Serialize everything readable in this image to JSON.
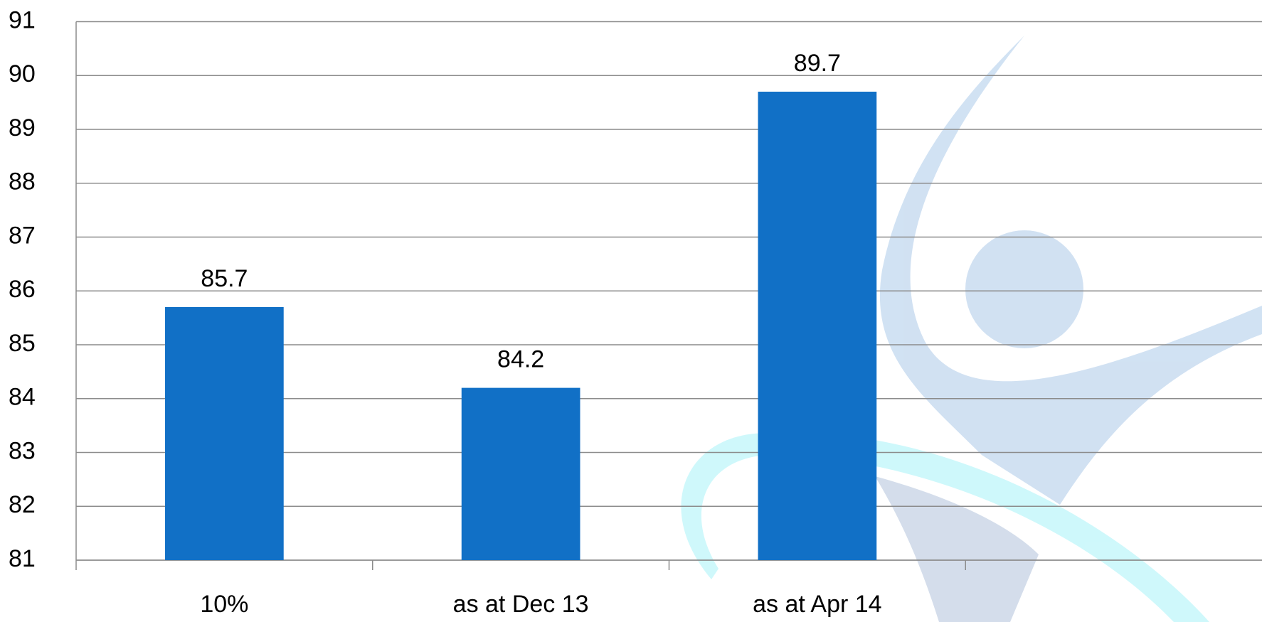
{
  "chart_data": {
    "type": "bar",
    "categories": [
      "10%",
      "as at Dec 13",
      "as at Apr 14",
      null
    ],
    "values": [
      85.7,
      84.2,
      89.7,
      null
    ],
    "color": "#1170c6",
    "ylim": [
      81,
      91
    ],
    "yticks": [
      81,
      82,
      83,
      84,
      85,
      86,
      87,
      88,
      89,
      90,
      91
    ],
    "grid": true
  }
}
